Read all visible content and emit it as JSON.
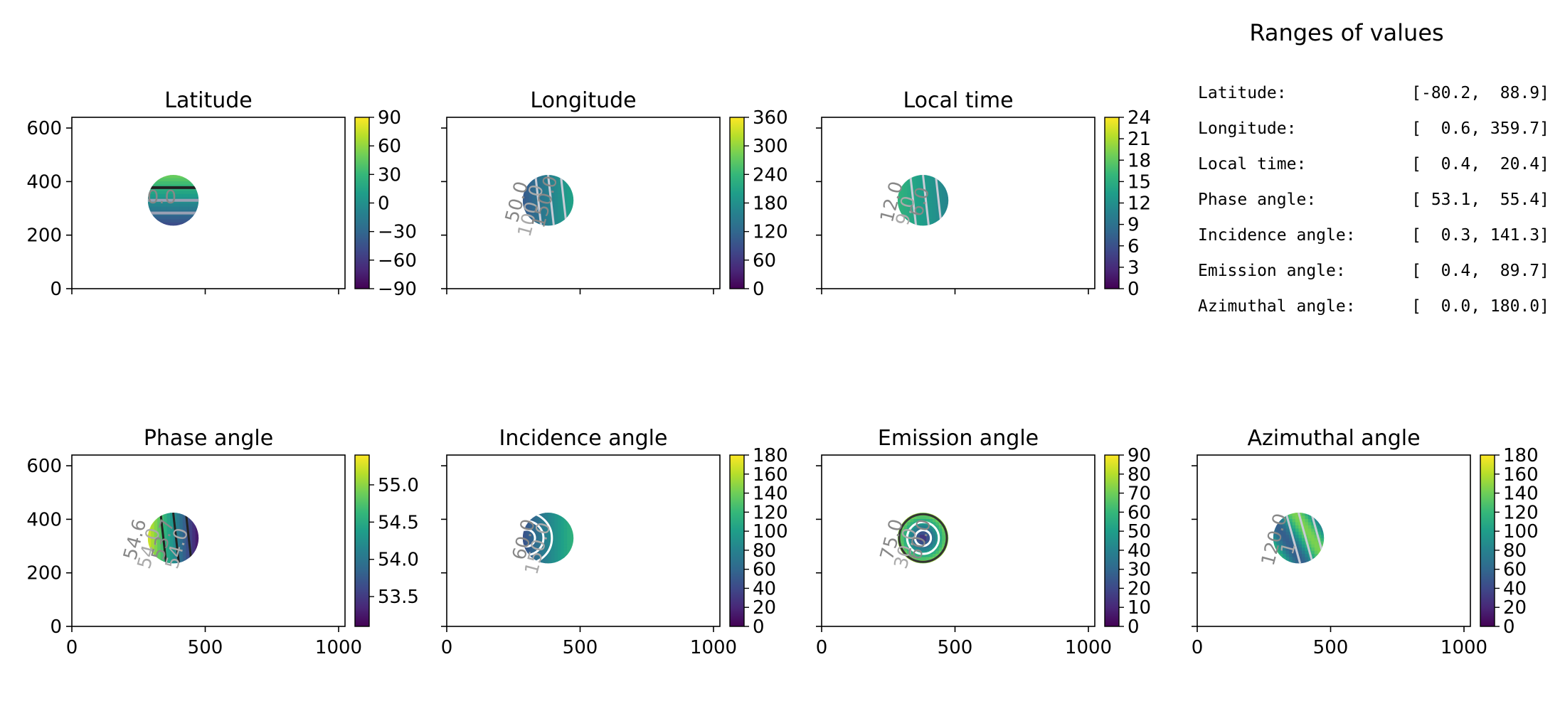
{
  "ranges": {
    "title": "Ranges of values",
    "rows": [
      {
        "label": "Latitude:",
        "value": "[-80.2,  88.9]"
      },
      {
        "label": "Longitude:",
        "value": "[  0.6, 359.7]"
      },
      {
        "label": "Local time:",
        "value": "[  0.4,  20.4]"
      },
      {
        "label": "Phase angle:",
        "value": "[ 53.1,  55.4]"
      },
      {
        "label": "Incidence angle:",
        "value": "[  0.3, 141.3]"
      },
      {
        "label": "Emission angle:",
        "value": "[  0.4,  89.7]"
      },
      {
        "label": "Azimuthal angle:",
        "value": "[  0.0, 180.0]"
      }
    ]
  },
  "colormap": "viridis",
  "colormap_stops": [
    "#440154",
    "#482878",
    "#3e4989",
    "#31688e",
    "#26828e",
    "#1f9e89",
    "#35b779",
    "#6ece58",
    "#b5de2b",
    "#fde725"
  ],
  "chart_data": [
    {
      "type": "heatmap",
      "title": "Latitude",
      "xlim": [
        0,
        1024
      ],
      "ylim": [
        0,
        640
      ],
      "xticks": [
        0,
        500,
        1000
      ],
      "xtick_labels_shown": false,
      "yticks": [
        0,
        200,
        400,
        600
      ],
      "ytick_labels": [
        "0",
        "200",
        "400",
        "600"
      ],
      "disc": {
        "cx": 380,
        "cy": 330,
        "r": 95
      },
      "colorbar": {
        "min": -90,
        "max": 90,
        "ticks": [
          -90,
          -60,
          -30,
          0,
          30,
          60,
          90
        ],
        "tick_labels": [
          "−90",
          "−60",
          "−30",
          "0",
          "30",
          "60",
          "90"
        ]
      },
      "contour_labels": [
        "0.0"
      ]
    },
    {
      "type": "heatmap",
      "title": "Longitude",
      "xlim": [
        0,
        1024
      ],
      "ylim": [
        0,
        640
      ],
      "xticks": [
        0,
        500,
        1000
      ],
      "xtick_labels_shown": false,
      "yticks": [
        0,
        200,
        400,
        600
      ],
      "ytick_labels": [],
      "disc": {
        "cx": 380,
        "cy": 330,
        "r": 95
      },
      "colorbar": {
        "min": 0,
        "max": 360,
        "ticks": [
          0,
          60,
          120,
          180,
          240,
          300,
          360
        ],
        "tick_labels": [
          "0",
          "60",
          "120",
          "180",
          "240",
          "300",
          "360"
        ]
      },
      "contour_labels": [
        "50.0",
        "100.0",
        "150.0"
      ]
    },
    {
      "type": "heatmap",
      "title": "Local time",
      "xlim": [
        0,
        1024
      ],
      "ylim": [
        0,
        640
      ],
      "xticks": [
        0,
        500,
        1000
      ],
      "xtick_labels_shown": false,
      "yticks": [
        0,
        200,
        400,
        600
      ],
      "ytick_labels": [],
      "disc": {
        "cx": 380,
        "cy": 330,
        "r": 95
      },
      "colorbar": {
        "min": 0,
        "max": 24,
        "ticks": [
          0,
          3,
          6,
          9,
          12,
          15,
          18,
          21,
          24
        ],
        "tick_labels": [
          "0",
          "3",
          "6",
          "9",
          "12",
          "15",
          "18",
          "21",
          "24"
        ]
      },
      "contour_labels": [
        "12.0",
        "9.0",
        "6.0"
      ]
    },
    {
      "type": "heatmap",
      "title": "Phase angle",
      "xlim": [
        0,
        1024
      ],
      "ylim": [
        0,
        640
      ],
      "xticks": [
        0,
        500,
        1000
      ],
      "xtick_labels": [
        "0",
        "500",
        "1000"
      ],
      "yticks": [
        0,
        200,
        400,
        600
      ],
      "ytick_labels": [
        "0",
        "200",
        "400",
        "600"
      ],
      "disc": {
        "cx": 380,
        "cy": 330,
        "r": 95
      },
      "colorbar": {
        "min": 53.1,
        "max": 55.4,
        "ticks": [
          53.5,
          54.0,
          54.5,
          55.0
        ],
        "tick_labels": [
          "53.5",
          "54.0",
          "54.5",
          "55.0"
        ]
      },
      "contour_labels": [
        "54.6",
        "54.0",
        "53.7",
        "54.0"
      ]
    },
    {
      "type": "heatmap",
      "title": "Incidence angle",
      "xlim": [
        0,
        1024
      ],
      "ylim": [
        0,
        640
      ],
      "xticks": [
        0,
        500,
        1000
      ],
      "xtick_labels": [
        "0",
        "500",
        "1000"
      ],
      "yticks": [
        0,
        200,
        400,
        600
      ],
      "ytick_labels": [],
      "disc": {
        "cx": 380,
        "cy": 330,
        "r": 95
      },
      "colorbar": {
        "min": 0,
        "max": 180,
        "ticks": [
          0,
          20,
          40,
          60,
          80,
          100,
          120,
          140,
          160,
          180
        ],
        "tick_labels": [
          "0",
          "20",
          "40",
          "60",
          "80",
          "100",
          "120",
          "140",
          "160",
          "180"
        ]
      },
      "contour_labels": [
        "60.0",
        "150.0"
      ]
    },
    {
      "type": "heatmap",
      "title": "Emission angle",
      "xlim": [
        0,
        1024
      ],
      "ylim": [
        0,
        640
      ],
      "xticks": [
        0,
        500,
        1000
      ],
      "xtick_labels": [
        "0",
        "500",
        "1000"
      ],
      "yticks": [
        0,
        200,
        400,
        600
      ],
      "ytick_labels": [],
      "disc": {
        "cx": 380,
        "cy": 330,
        "r": 95
      },
      "colorbar": {
        "min": 0,
        "max": 90,
        "ticks": [
          0,
          10,
          20,
          30,
          40,
          50,
          60,
          70,
          80,
          90
        ],
        "tick_labels": [
          "0",
          "10",
          "20",
          "30",
          "40",
          "50",
          "60",
          "70",
          "80",
          "90"
        ]
      },
      "contour_labels": [
        "75.0",
        "30.0",
        "60.0"
      ]
    },
    {
      "type": "heatmap",
      "title": "Azimuthal angle",
      "xlim": [
        0,
        1024
      ],
      "ylim": [
        0,
        640
      ],
      "xticks": [
        0,
        500,
        1000
      ],
      "xtick_labels": [
        "0",
        "500",
        "1000"
      ],
      "yticks": [
        0,
        200,
        400,
        600
      ],
      "ytick_labels": [],
      "disc": {
        "cx": 380,
        "cy": 330,
        "r": 95
      },
      "colorbar": {
        "min": 0,
        "max": 180,
        "ticks": [
          0,
          20,
          40,
          60,
          80,
          100,
          120,
          140,
          160,
          180
        ],
        "tick_labels": [
          "0",
          "20",
          "40",
          "60",
          "80",
          "100",
          "120",
          "140",
          "160",
          "180"
        ]
      },
      "contour_labels": [
        "120.0",
        "1"
      ]
    }
  ]
}
